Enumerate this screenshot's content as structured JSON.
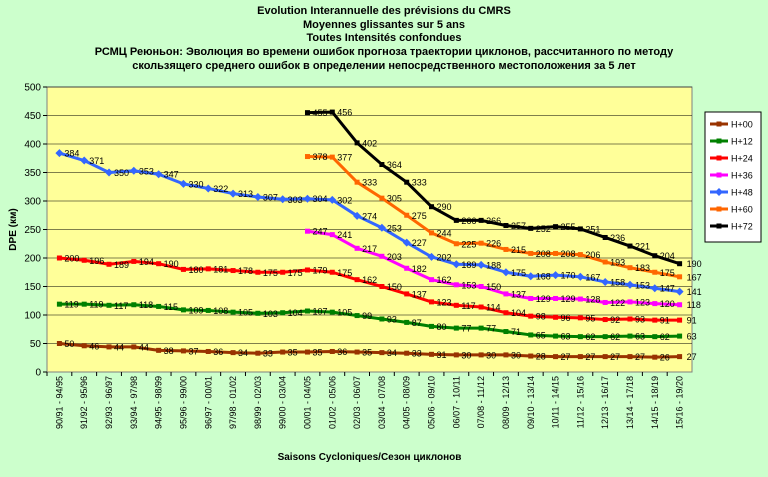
{
  "chart_data": {
    "type": "line",
    "title_lines": [
      "Evolution Interannuelle des prévisions du CMRS",
      "Moyennes glissantes sur 5 ans",
      "Toutes Intensités confondues",
      "РСМЦ Реюньон: Эволюция во времени ошибок прогноза траектории циклонов, рассчитанного по методу",
      "скользящего среднего ошибок в определении непосредственного местоположения за 5 лет"
    ],
    "xlabel": "Saisons Cycloniques/Сезон циклонов",
    "ylabel": "DPE (км)",
    "ylim": [
      0,
      500
    ],
    "yticks": [
      0,
      50,
      100,
      150,
      200,
      250,
      300,
      350,
      400,
      450,
      500
    ],
    "grid": true,
    "legend_position": "right",
    "categories": [
      "90/91 - 94/95",
      "91/92 - 95/96",
      "92/93 - 96/97",
      "93/94 - 97/98",
      "94/95 - 98/99",
      "95/96 - 99/00",
      "96/97 - 00/01",
      "97/98 - 01/02",
      "98/99 - 02/03",
      "99/00 - 03/04",
      "00/01 - 04/05",
      "01/02 - 05/06",
      "02/03 - 06/07",
      "03/04 - 07/08",
      "04/05 - 08/09",
      "05/06 - 09/10",
      "06/07 - 10/11",
      "07/08 - 11/12",
      "08/09 - 12/13",
      "09/10 - 13/14",
      "10/11 - 14/15",
      "11/12 - 15/16",
      "12/13 - 16/17",
      "13/14 - 17/18",
      "14/15 - 18/19",
      "15/16 - 19/20"
    ],
    "series": [
      {
        "name": "H+00",
        "color": "#993300",
        "marker": "square",
        "values": [
          50,
          46,
          44,
          44,
          38,
          37,
          36,
          34,
          33,
          35,
          35,
          36,
          35,
          34,
          33,
          31,
          30,
          30,
          30,
          28,
          27,
          27,
          27,
          27,
          26,
          27
        ]
      },
      {
        "name": "H+12",
        "color": "#008000",
        "marker": "square",
        "values": [
          119,
          119,
          117,
          118,
          115,
          109,
          108,
          105,
          103,
          104,
          107,
          105,
          99,
          93,
          87,
          80,
          77,
          77,
          71,
          65,
          63,
          62,
          62,
          63,
          62,
          63
        ]
      },
      {
        "name": "H+24",
        "color": "#ff0000",
        "marker": "square",
        "values": [
          200,
          196,
          189,
          194,
          190,
          180,
          181,
          178,
          175,
          175,
          179,
          175,
          162,
          150,
          137,
          123,
          117,
          114,
          104,
          98,
          96,
          95,
          92,
          93,
          91,
          91
        ]
      },
      {
        "name": "H+36",
        "color": "#ff00ff",
        "marker": "square",
        "values": [
          null,
          null,
          null,
          null,
          null,
          null,
          null,
          null,
          null,
          null,
          247,
          241,
          217,
          203,
          182,
          162,
          153,
          150,
          137,
          129,
          129,
          128,
          122,
          123,
          120,
          118
        ]
      },
      {
        "name": "H+48",
        "color": "#3366ff",
        "marker": "diamond",
        "values": [
          384,
          371,
          350,
          353,
          347,
          330,
          322,
          313,
          307,
          303,
          304,
          302,
          274,
          253,
          227,
          202,
          189,
          188,
          175,
          168,
          170,
          167,
          158,
          153,
          147,
          141
        ]
      },
      {
        "name": "H+60",
        "color": "#ff6600",
        "marker": "square",
        "values": [
          null,
          null,
          null,
          null,
          null,
          null,
          null,
          null,
          null,
          null,
          378,
          377,
          333,
          305,
          275,
          244,
          225,
          226,
          215,
          208,
          208,
          206,
          193,
          183,
          175,
          167
        ]
      },
      {
        "name": "H+72",
        "color": "#000000",
        "marker": "square",
        "values": [
          null,
          null,
          null,
          null,
          null,
          null,
          null,
          null,
          null,
          null,
          455,
          456,
          402,
          364,
          333,
          290,
          266,
          266,
          257,
          252,
          255,
          251,
          236,
          221,
          204,
          190
        ]
      }
    ]
  }
}
